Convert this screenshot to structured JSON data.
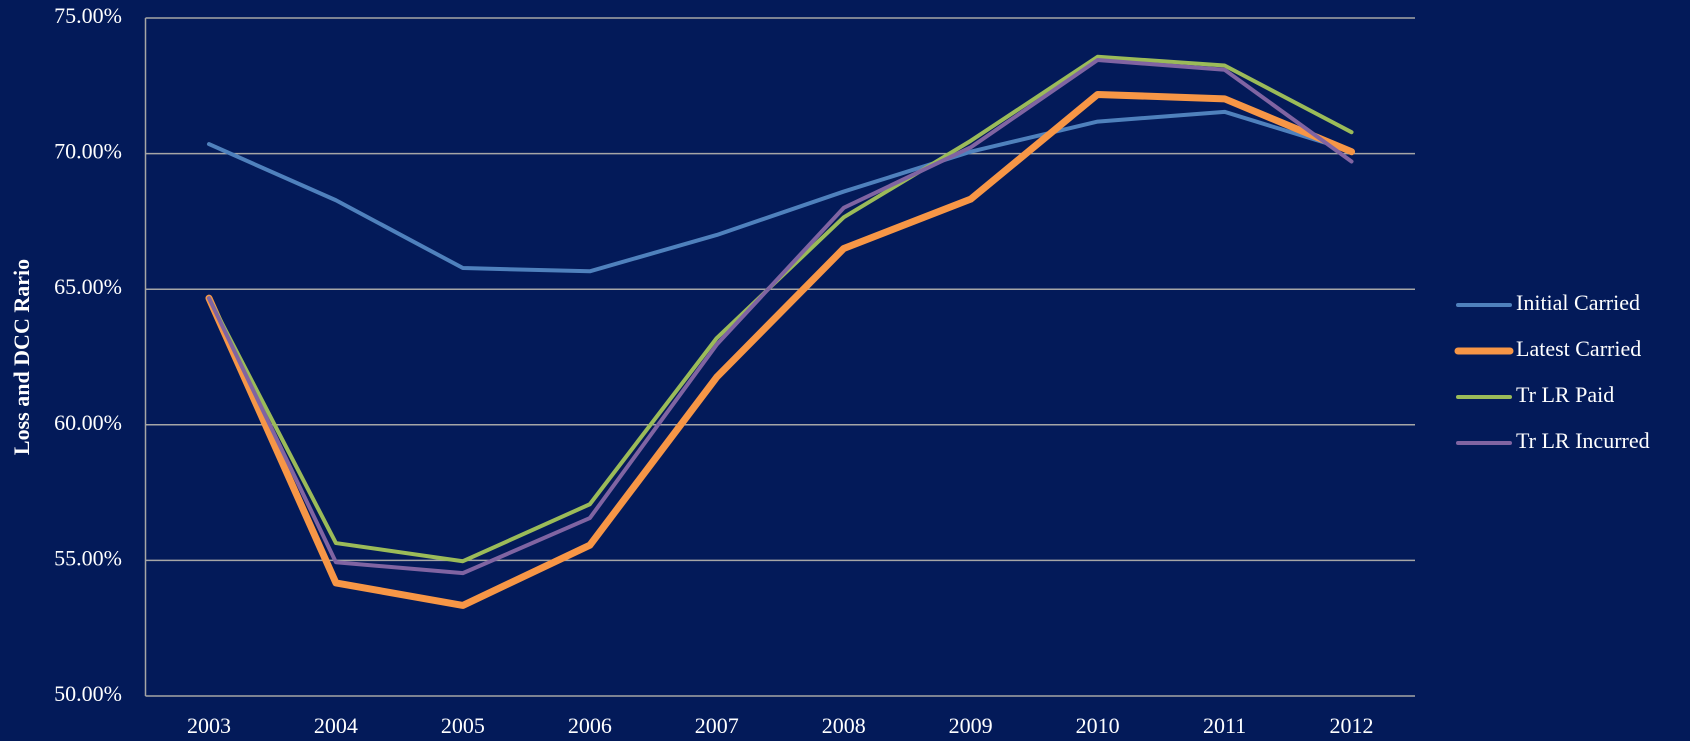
{
  "chart_data": {
    "type": "line",
    "y_label": "Loss and DCC Rario",
    "categories": [
      "2003",
      "2004",
      "2005",
      "2006",
      "2007",
      "2008",
      "2009",
      "2010",
      "2011",
      "2012"
    ],
    "series": [
      {
        "name": "Initial Carried",
        "color": "#4f81bd",
        "width": 4,
        "values": [
          70.35,
          68.28,
          65.78,
          65.66,
          67.0,
          68.6,
          70.07,
          71.18,
          71.54,
          70.1
        ]
      },
      {
        "name": "Latest Carried",
        "color": "#f79646",
        "width": 7,
        "values": [
          64.67,
          54.17,
          53.34,
          55.56,
          61.76,
          66.5,
          68.32,
          72.18,
          72.02,
          70.07
        ]
      },
      {
        "name": "Tr LR Paid",
        "color": "#9bbb59",
        "width": 4,
        "values": [
          64.67,
          55.64,
          54.97,
          57.07,
          63.2,
          67.65,
          70.47,
          73.57,
          73.25,
          70.79
        ]
      },
      {
        "name": "Tr LR Incurred",
        "color": "#8064a2",
        "width": 4,
        "values": [
          64.67,
          54.93,
          54.53,
          56.56,
          62.96,
          68.0,
          70.23,
          73.45,
          73.09,
          69.71
        ]
      }
    ],
    "ylim": [
      50,
      75
    ],
    "yticks": [
      {
        "value": 50,
        "label": "50.00%"
      },
      {
        "value": 55,
        "label": "55.00%"
      },
      {
        "value": 60,
        "label": "60.00%"
      },
      {
        "value": 65,
        "label": "65.00%"
      },
      {
        "value": 70,
        "label": "70.00%"
      },
      {
        "value": 75,
        "label": "75.00%"
      }
    ],
    "grid": true,
    "legend": "right"
  }
}
